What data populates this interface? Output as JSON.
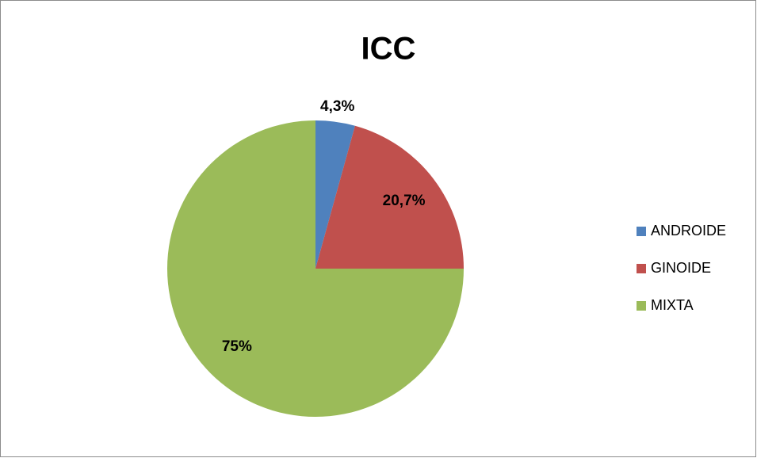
{
  "chart_data": {
    "type": "pie",
    "title": "ICC",
    "categories": [
      "ANDROIDE",
      "GINOIDE",
      "MIXTA"
    ],
    "values": [
      4.3,
      20.7,
      75
    ],
    "value_labels": [
      "4,3%",
      "20,7%",
      "75%"
    ],
    "colors": [
      "#4f81bd",
      "#c0504d",
      "#9bbb59"
    ],
    "legend": "right"
  }
}
